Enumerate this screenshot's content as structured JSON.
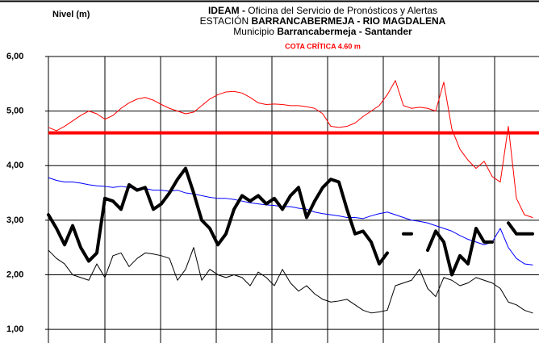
{
  "chart_data": {
    "type": "line",
    "title_lines": [
      [
        {
          "text": "IDEAM -",
          "bold": true
        },
        {
          "text": " Oficina del Servicio de Pronósticos y Alertas",
          "bold": false
        }
      ],
      [
        {
          "text": "ESTACIÓN ",
          "bold": false
        },
        {
          "text": "BARRANCABERMEJA - RIO MAGDALENA",
          "bold": true
        }
      ],
      [
        {
          "text": "Municipio ",
          "bold": false
        },
        {
          "text": "Barrancabermeja - Santander",
          "bold": true
        }
      ]
    ],
    "subtitle": "COTA CRÍTICA 4.60 m",
    "subtitle_color": "#ff0000",
    "y_label": "Nivel (m)",
    "ylim": [
      0.75,
      6
    ],
    "yticks": [
      {
        "value": 1,
        "label": "1,00"
      },
      {
        "value": 2,
        "label": "2,00"
      },
      {
        "value": 3,
        "label": "3,00"
      },
      {
        "value": 4,
        "label": "4,00"
      },
      {
        "value": 5,
        "label": "5,00"
      },
      {
        "value": 6,
        "label": "6,00"
      }
    ],
    "grid": true,
    "critical_line": {
      "value": 4.6,
      "color": "#ff0000",
      "width": 4
    },
    "series": [
      {
        "color": "#ff0000",
        "width": 1,
        "values": [
          4.7,
          4.64,
          4.72,
          4.82,
          4.92,
          5.0,
          4.95,
          4.85,
          4.92,
          5.05,
          5.15,
          5.22,
          5.25,
          5.2,
          5.12,
          5.05,
          5.0,
          4.95,
          4.98,
          5.1,
          5.22,
          5.3,
          5.35,
          5.36,
          5.33,
          5.25,
          5.15,
          5.12,
          5.13,
          5.12,
          5.1,
          5.1,
          5.08,
          5.05,
          4.95,
          4.72,
          4.7,
          4.72,
          4.78,
          4.9,
          5.0,
          5.1,
          5.3,
          5.56,
          5.1,
          5.05,
          5.07,
          5.05,
          5.0,
          5.53,
          4.67,
          4.3,
          4.1,
          3.95,
          4.08,
          3.8,
          3.7,
          4.72,
          3.4,
          3.1,
          3.05
        ]
      },
      {
        "color": "#0000ff",
        "width": 1,
        "values": [
          3.78,
          3.73,
          3.7,
          3.7,
          3.68,
          3.65,
          3.63,
          3.62,
          3.6,
          3.62,
          3.6,
          3.58,
          3.58,
          3.55,
          3.55,
          3.53,
          3.55,
          3.5,
          3.48,
          3.45,
          3.42,
          3.4,
          3.4,
          3.38,
          3.35,
          3.32,
          3.3,
          3.28,
          3.27,
          3.25,
          3.25,
          3.22,
          3.2,
          3.15,
          3.12,
          3.1,
          3.08,
          3.05,
          3.05,
          3.03,
          3.08,
          3.12,
          3.15,
          3.1,
          3.05,
          3.0,
          2.98,
          2.95,
          2.9,
          2.85,
          2.8,
          2.72,
          2.65,
          2.6,
          2.55,
          2.6,
          2.85,
          2.5,
          2.3,
          2.2,
          2.18
        ]
      },
      {
        "color": "#000000",
        "width": 4,
        "values": [
          3.1,
          2.85,
          2.55,
          2.9,
          2.5,
          2.25,
          2.4,
          3.4,
          3.35,
          3.2,
          3.65,
          3.55,
          3.6,
          3.2,
          3.3,
          3.5,
          3.75,
          3.95,
          3.5,
          3.0,
          2.85,
          2.55,
          2.75,
          3.2,
          3.45,
          3.35,
          3.45,
          3.3,
          3.4,
          3.2,
          3.45,
          3.6,
          3.05,
          3.35,
          3.6,
          3.75,
          3.7,
          3.2,
          2.75,
          2.8,
          2.6,
          2.2,
          2.4,
          null,
          2.75,
          2.75,
          null,
          2.45,
          2.8,
          2.6,
          2.0,
          2.35,
          2.2,
          2.85,
          2.6,
          2.6,
          null,
          2.95,
          2.75,
          2.75,
          2.75
        ]
      },
      {
        "color": "#000000",
        "width": 1,
        "values": [
          2.45,
          2.3,
          2.2,
          2.0,
          1.95,
          1.9,
          2.2,
          1.95,
          2.35,
          2.4,
          2.15,
          2.3,
          2.4,
          2.38,
          2.35,
          2.3,
          1.9,
          2.1,
          2.5,
          1.9,
          2.1,
          2.0,
          1.95,
          2.0,
          1.95,
          1.8,
          2.05,
          1.95,
          1.8,
          2.1,
          1.85,
          1.7,
          1.8,
          1.65,
          1.55,
          1.5,
          1.52,
          1.55,
          1.45,
          1.35,
          1.3,
          1.32,
          1.35,
          1.8,
          1.85,
          1.9,
          2.1,
          1.75,
          1.6,
          1.95,
          1.9,
          1.8,
          1.85,
          1.95,
          1.9,
          1.85,
          1.75,
          1.5,
          1.45,
          1.35,
          1.3
        ]
      }
    ]
  }
}
